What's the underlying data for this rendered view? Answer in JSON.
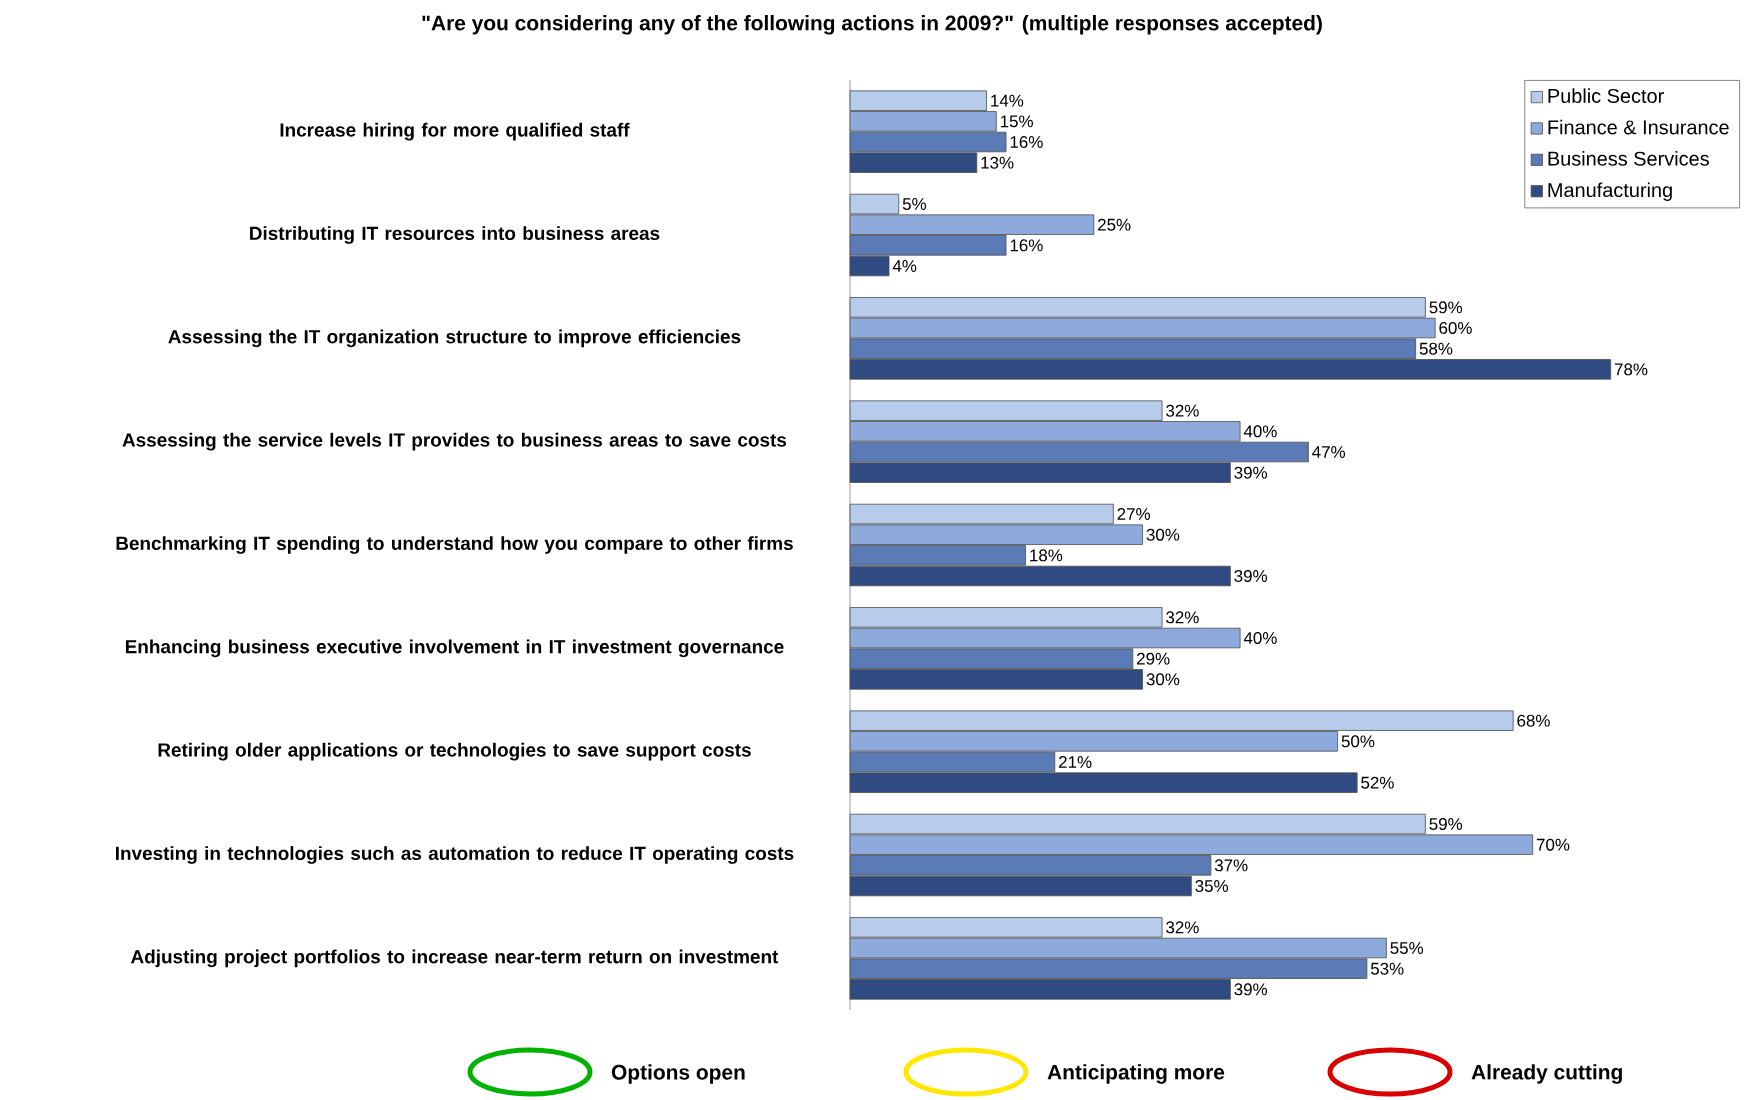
{
  "chart_data": {
    "type": "bar",
    "orientation": "horizontal",
    "title": "\"Are you considering any of the following actions in 2009?\" (multiple responses accepted)",
    "categories": [
      "Increase hiring for more qualified staff",
      "Distributing IT resources into business areas",
      "Assessing the IT organization structure to improve efficiencies",
      "Assessing the service levels IT provides to business areas to save costs",
      "Benchmarking IT spending to understand how you compare to other firms",
      "Enhancing business executive involvement in IT investment governance",
      "Retiring older applications or technologies to save support costs",
      "Investing in technologies such as automation to reduce IT operating costs",
      "Adjusting project portfolios to increase near-term return on investment"
    ],
    "series": [
      {
        "name": "Public Sector",
        "color": "#b7cbeb",
        "values": [
          14,
          5,
          59,
          32,
          27,
          32,
          68,
          59,
          32
        ],
        "value_labels": [
          "14%",
          "5%",
          "59%",
          "32%",
          "27%",
          "32%",
          "68%",
          "59%",
          "32%"
        ]
      },
      {
        "name": "Finance & Insurance",
        "color": "#8eaadc",
        "values": [
          15,
          25,
          60,
          40,
          30,
          40,
          50,
          70,
          55
        ],
        "value_labels": [
          "15%",
          "25%",
          "60%",
          "40%",
          "30%",
          "40%",
          "50%",
          "70%",
          "55%"
        ]
      },
      {
        "name": "Business Services",
        "color": "#5a7bb5",
        "values": [
          16,
          16,
          58,
          47,
          18,
          29,
          21,
          37,
          53
        ],
        "value_labels": [
          "16%",
          "16%",
          "58%",
          "47%",
          "18%",
          "29%",
          "21%",
          "37%",
          "53%"
        ]
      },
      {
        "name": "Manufacturing",
        "color": "#2f4b82",
        "values": [
          13,
          4,
          78,
          39,
          39,
          30,
          52,
          35,
          39
        ],
        "value_labels": [
          "13%",
          "4%",
          "78%",
          "39%",
          "39%",
          "30%",
          "52%",
          "35%",
          "39%"
        ]
      }
    ],
    "legend": "top right",
    "annotations": [
      "Options open",
      "Anticipating more",
      "Already cutting"
    ]
  }
}
